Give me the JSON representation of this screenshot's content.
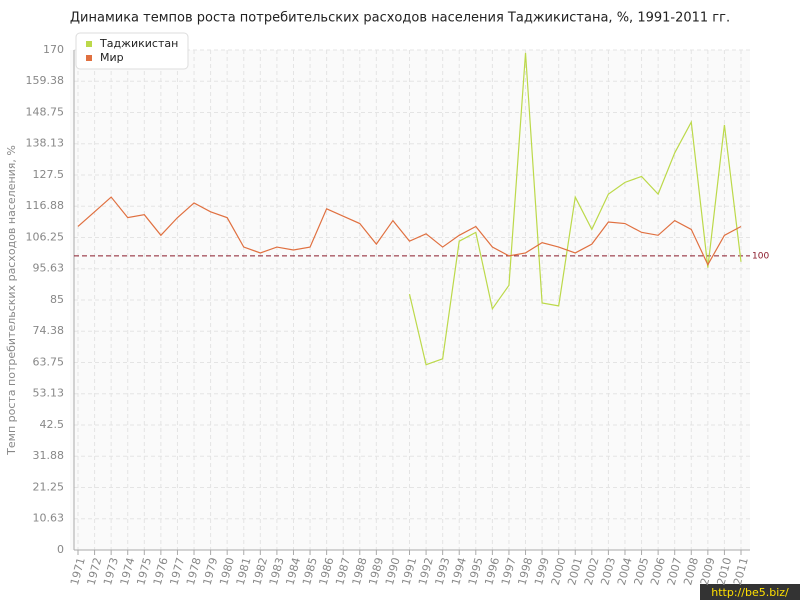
{
  "chart_data": {
    "type": "line",
    "title": "Динамика темпов роста потребительских расходов населения Таджикистана, %, 1991-2011 гг.",
    "y_label": "Темп роста потребительских расходов населения, %",
    "categories": [
      "1971",
      "1972",
      "1973",
      "1974",
      "1975",
      "1976",
      "1977",
      "1978",
      "1979",
      "1980",
      "1981",
      "1982",
      "1983",
      "1984",
      "1985",
      "1986",
      "1987",
      "1988",
      "1989",
      "1990",
      "1991",
      "1992",
      "1993",
      "1994",
      "1995",
      "1996",
      "1997",
      "1998",
      "1999",
      "2000",
      "2001",
      "2002",
      "2003",
      "2004",
      "2005",
      "2006",
      "2007",
      "2008",
      "2009",
      "2010",
      "2011"
    ],
    "series": [
      {
        "name": "Таджикистан",
        "color": "#bcd94a",
        "values": [
          null,
          null,
          null,
          null,
          null,
          null,
          null,
          null,
          null,
          null,
          null,
          null,
          null,
          null,
          null,
          null,
          null,
          null,
          null,
          null,
          87,
          63,
          65,
          105,
          108,
          82,
          90,
          169,
          84,
          83,
          120,
          109,
          121,
          125,
          127,
          121,
          135,
          145.5,
          96,
          144.5,
          98
        ]
      },
      {
        "name": "Мир",
        "color": "#e07040",
        "values": [
          110,
          115,
          120,
          113,
          114,
          107,
          113,
          118,
          115,
          113,
          103,
          101,
          103,
          102,
          103,
          116,
          113.5,
          111,
          104,
          112,
          105,
          107.5,
          103,
          107,
          110,
          103,
          100,
          101,
          104.5,
          103,
          101,
          104,
          111.5,
          111,
          108,
          107,
          112,
          109,
          97,
          107,
          110
        ]
      }
    ],
    "ylim": [
      0,
      170
    ],
    "yticks": [
      0,
      10.63,
      21.25,
      31.88,
      42.5,
      53.13,
      63.75,
      74.38,
      85,
      95.63,
      106.25,
      116.88,
      127.5,
      138.13,
      148.75,
      159.38,
      170
    ],
    "reference_line": 100,
    "reference_color": "#8b1a2a",
    "grid": true,
    "legend_position": "top-left",
    "watermark": "http://be5.biz/"
  }
}
